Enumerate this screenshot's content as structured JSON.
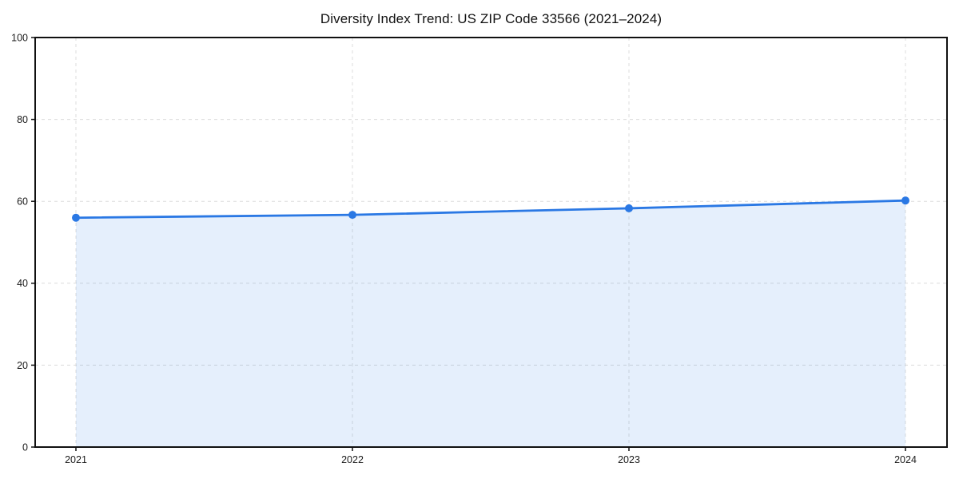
{
  "chart_data": {
    "type": "area",
    "title": "Diversity Index Trend: US ZIP Code 33566 (2021–2024)",
    "xlabel": "",
    "ylabel": "",
    "categories": [
      "2021",
      "2022",
      "2023",
      "2024"
    ],
    "series": [
      {
        "name": "Diversity Index",
        "values": [
          56.0,
          56.7,
          58.3,
          60.2
        ]
      }
    ],
    "ylim": [
      0,
      100
    ],
    "yticks": [
      0,
      20,
      40,
      60,
      80,
      100
    ],
    "grid": true,
    "grid_style": "dashed",
    "legend": "none",
    "colors": {
      "line": "#2a78e4",
      "marker": "#2a78e4",
      "fill": "#2a78e4",
      "fill_opacity": 0.12,
      "grid": "#dcdcdc",
      "spine": "#111111",
      "tick": "#111111",
      "tick_label": "#1a1a1a",
      "title": "#111111",
      "background": "#ffffff"
    }
  }
}
